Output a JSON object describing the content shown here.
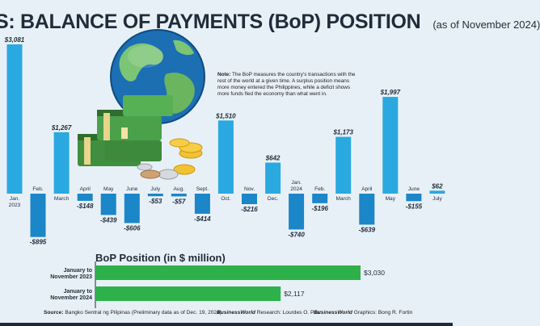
{
  "header": {
    "title": "S: BALANCE OF PAYMENTS (BoP) POSITION",
    "subtitle": "(as of November 2024)"
  },
  "note": {
    "label": "Note:",
    "text": "The BoP measures the country's transactions with the rest of the world at a given time. A surplus position means more money entered the Philippines, while a deficit shows more funds fled the economy than what went in."
  },
  "colors": {
    "positive_bar": "#29a9e0",
    "negative_bar": "#1b86c8",
    "summary_bar": "#2eb14a",
    "text": "#1f2c3a"
  },
  "chart_data": [
    {
      "type": "bar",
      "categories": [
        "Jan.\n2023",
        "Feb.",
        "March",
        "April",
        "May",
        "June",
        "July",
        "Aug.",
        "Sept.",
        "Oct.",
        "Nov.",
        "Dec.",
        "Jan.\n2024",
        "Feb.",
        "March",
        "April",
        "May",
        "June",
        "July"
      ],
      "values": [
        3081,
        -895,
        1267,
        -148,
        -439,
        -606,
        -53,
        -57,
        -414,
        1510,
        -216,
        642,
        -740,
        -196,
        1173,
        -639,
        1997,
        -155,
        62
      ],
      "value_labels": [
        "$3,081",
        "-$895",
        "$1,267",
        "-$148",
        "-$439",
        "-$606",
        "-$53",
        "-$57",
        "-$414",
        "$1,510",
        "-$216",
        "$642",
        "-$740",
        "-$196",
        "$1,173",
        "-$639",
        "$1,997",
        "-$155",
        "$62"
      ],
      "ylim": [
        -1050,
        3081
      ]
    },
    {
      "type": "bar",
      "title": "BoP Position (in $ million)",
      "orientation": "horizontal",
      "categories": [
        "January to\nNovember 2023",
        "January to\nNovember 2024"
      ],
      "values": [
        3030,
        2117
      ],
      "value_labels": [
        "$3,030",
        "$2,117"
      ]
    }
  ],
  "footer": {
    "source_label": "Source:",
    "source_text": "Bangko Sentral ng Pilipinas (Preliminary data as of Dec. 19, 2024)",
    "research_brand": "BusinessWorld",
    "research_text": " Research: Lourdes O. Pilar",
    "graphics_brand": "BusinessWorld",
    "graphics_text": " Graphics: Bong R. Fortin"
  }
}
